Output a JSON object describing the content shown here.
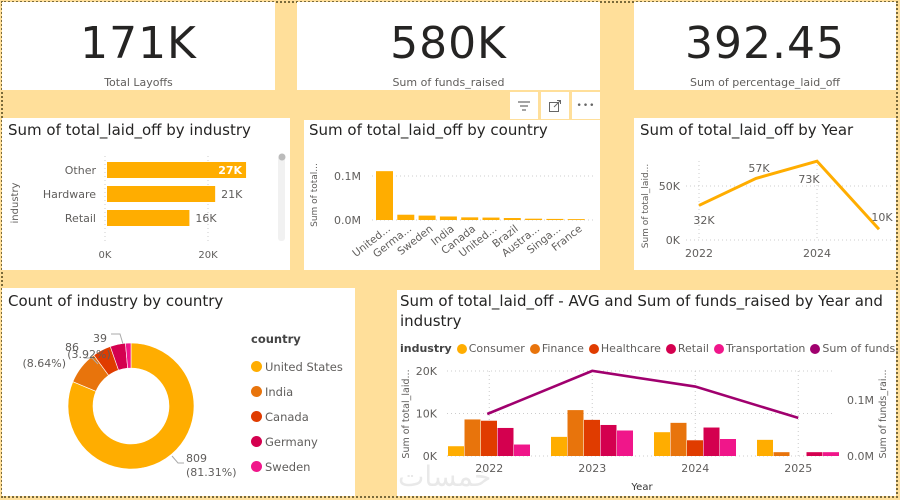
{
  "cards": [
    {
      "value": "171K",
      "label": "Total Layoffs"
    },
    {
      "value": "580K",
      "label": "Sum of funds_raised"
    },
    {
      "value": "392.45",
      "label": "Sum of percentage_laid_off"
    }
  ],
  "visual_header": {
    "icons": [
      "filter-icon",
      "focus-mode-icon",
      "more-options-icon"
    ],
    "more_label": "•••"
  },
  "chart_data": [
    {
      "id": "industry",
      "type": "bar",
      "orientation": "horizontal",
      "title": "Sum of total_laid_off by industry",
      "ylabel": "industry",
      "xlabel": "",
      "categories": [
        "Other",
        "Hardware",
        "Retail"
      ],
      "values": [
        27000,
        21000,
        16000
      ],
      "data_labels": [
        "27K",
        "21K",
        "16K"
      ],
      "xticks": [
        "0K",
        "20K"
      ],
      "xlim": [
        0,
        30000
      ],
      "color": "#FFAD00",
      "scrollable": true
    },
    {
      "id": "country",
      "type": "bar",
      "title": "Sum of total_laid_off by country",
      "ylabel": "Sum of total...",
      "categories": [
        "United...",
        "Germa...",
        "Sweden",
        "India",
        "Canada",
        "United...",
        "Brazil",
        "Austra...",
        "Singa...",
        "France"
      ],
      "values": [
        111000,
        12000,
        10000,
        8000,
        6000,
        5500,
        4500,
        3000,
        2500,
        2000
      ],
      "yticks": [
        "0.0M",
        "0.1M"
      ],
      "ylim": [
        0,
        0.1
      ],
      "color": "#FFAD00"
    },
    {
      "id": "year",
      "type": "line",
      "title": "Sum of total_laid_off by Year",
      "ylabel": "Sum of total_laid...",
      "x": [
        2022,
        2023,
        2024,
        2025
      ],
      "values": [
        32000,
        57000,
        73000,
        10000
      ],
      "data_labels": [
        "32K",
        "57K",
        "73K",
        "10K"
      ],
      "xticks": [
        "2022",
        "2024"
      ],
      "yticks": [
        "0K",
        "50K"
      ],
      "color": "#FFAD00"
    },
    {
      "id": "donut",
      "type": "pie",
      "variant": "donut",
      "title": "Count of industry by country",
      "legend_title": "country",
      "legend_position": "right",
      "categories": [
        "United States",
        "India",
        "Canada",
        "Germany",
        "Sweden"
      ],
      "values": [
        809,
        86,
        47,
        39,
        14
      ],
      "colors": [
        "#FFAD00",
        "#E8740C",
        "#E03C00",
        "#D4004F",
        "#F0168A"
      ],
      "data_labels": [
        {
          "value": "809",
          "pct": "(81.31%)"
        },
        {
          "value": "86",
          "pct": "(8.64%)"
        },
        {
          "value": "39",
          "pct": "(3.92%)"
        }
      ]
    },
    {
      "id": "combo",
      "type": "bar",
      "variant": "clustered-column-with-line",
      "title": "Sum of total_laid_off - AVG and Sum of funds_raised by Year and industry",
      "legend_title": "industry",
      "legend_position": "top-left",
      "xlabel": "Year",
      "ylabel": "Sum of total_laid...",
      "y2label": "Sum of funds_rai...",
      "categories": [
        "2022",
        "2023",
        "2024",
        "2025"
      ],
      "yticks": [
        "0K",
        "10K",
        "20K"
      ],
      "y2ticks": [
        "0.0M",
        "0.1M"
      ],
      "ylim": [
        0,
        20000
      ],
      "y2lim": [
        0,
        0.15
      ],
      "series": [
        {
          "name": "Consumer",
          "color": "#FFAD00",
          "values": [
            2300,
            4500,
            5600,
            3800
          ]
        },
        {
          "name": "Finance",
          "color": "#E8740C",
          "values": [
            8600,
            10800,
            7800,
            900
          ]
        },
        {
          "name": "Healthcare",
          "color": "#E03C00",
          "values": [
            8300,
            8500,
            3700,
            0
          ]
        },
        {
          "name": "Retail",
          "color": "#D4004F",
          "values": [
            6600,
            7300,
            6700,
            900
          ]
        },
        {
          "name": "Transportation",
          "color": "#F0168A",
          "values": [
            2700,
            6000,
            4000,
            900
          ]
        }
      ],
      "line": {
        "name": "Sum of funds...",
        "color": "#A0006E",
        "values": [
          0.075,
          0.152,
          0.124,
          0.068
        ]
      }
    }
  ],
  "watermark": "خمسات"
}
